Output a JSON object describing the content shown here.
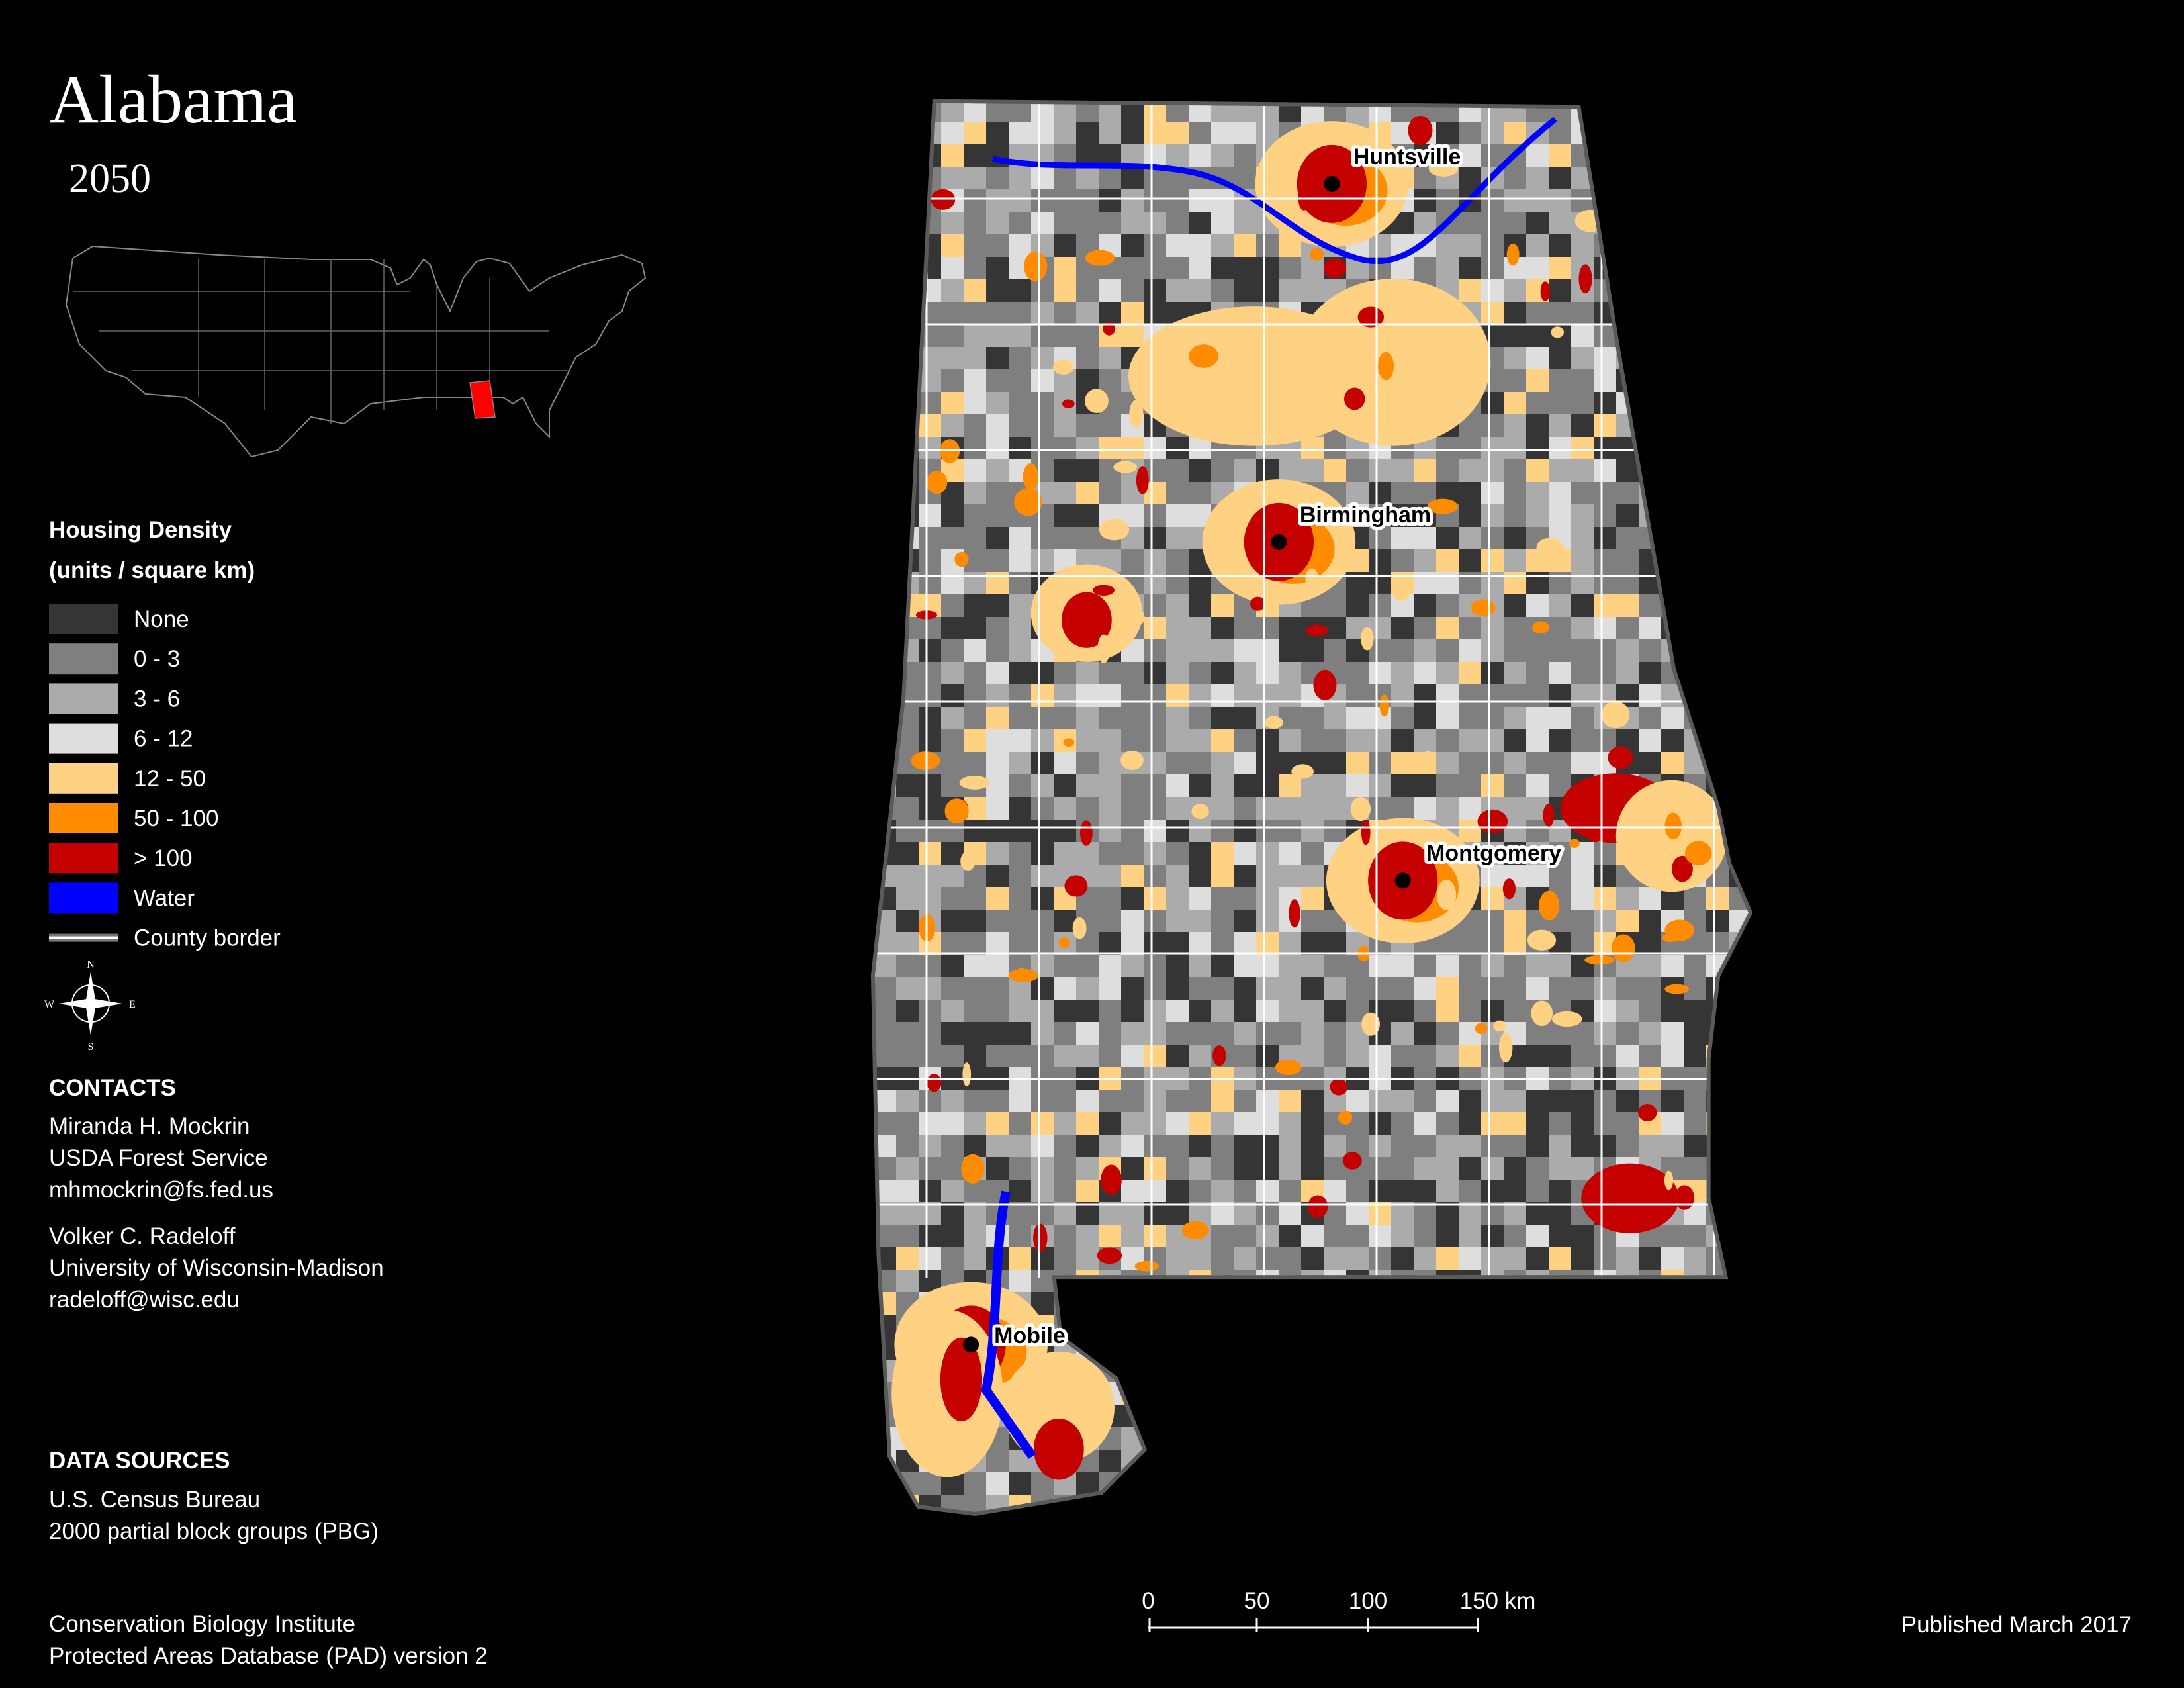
{
  "header": {
    "title": "Alabama",
    "subtitle": "2050"
  },
  "legend": {
    "title": "Housing Density",
    "units": "(units / square km)",
    "items": [
      {
        "label": "None",
        "color": "#353535"
      },
      {
        "label": "0 - 3",
        "color": "#7f7f7f"
      },
      {
        "label": "3 - 6",
        "color": "#ababab"
      },
      {
        "label": "6 - 12",
        "color": "#dedede"
      },
      {
        "label": "12 - 50",
        "color": "#ffd182"
      },
      {
        "label": "50 - 100",
        "color": "#ff8c00"
      },
      {
        "label": "> 100",
        "color": "#c40000"
      },
      {
        "label": "Water",
        "color": "#0000ff"
      },
      {
        "label": "County border",
        "color": "#ffffff",
        "symbol": "line"
      }
    ]
  },
  "compass": {
    "n": "N",
    "s": "S",
    "e": "E",
    "w": "W"
  },
  "contacts": {
    "heading": "CONTACTS",
    "people": [
      [
        "Miranda H. Mockrin",
        "USDA Forest Service",
        "mhmockrin@fs.fed.us"
      ],
      [
        "Volker C. Radeloff",
        "University of Wisconsin-Madison",
        "radeloff@wisc.edu"
      ]
    ]
  },
  "data_sources": {
    "heading": "DATA SOURCES",
    "entries": [
      [
        "U.S. Census Bureau",
        "2000 partial block groups (PBG)"
      ],
      [
        "Conservation Biology Institute",
        "Protected Areas Database (PAD) version 2"
      ]
    ]
  },
  "scale_bar": {
    "labels": [
      "0",
      "50",
      "100",
      "150 km"
    ]
  },
  "cities": [
    {
      "name": "Huntsville"
    },
    {
      "name": "Birmingham"
    },
    {
      "name": "Montgomery"
    },
    {
      "name": "Mobile"
    }
  ],
  "footer": {
    "published": "Published March 2017"
  }
}
